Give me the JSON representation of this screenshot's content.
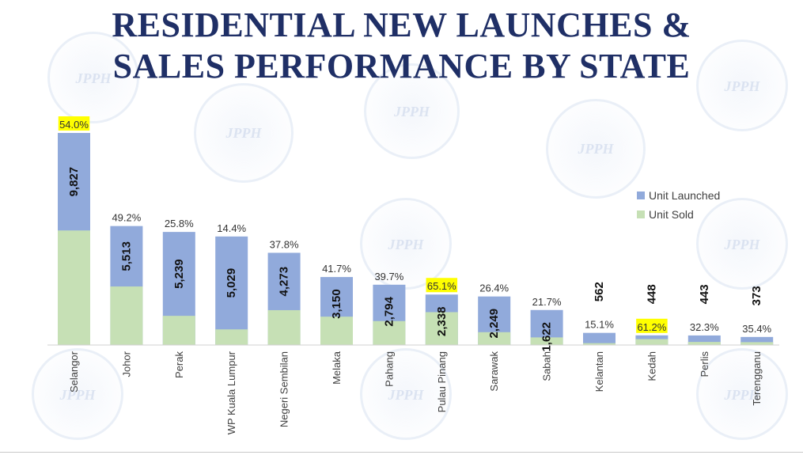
{
  "title_lines": [
    "RESIDENTIAL NEW LAUNCHES &",
    "SALES PERFORMANCE BY STATE"
  ],
  "watermark_icon": "jpph-globe-logo",
  "colors": {
    "launched": "#91aadb",
    "sold": "#c6e0b5",
    "highlight": "#ffff00",
    "title": "#1f2f66"
  },
  "chart_data": {
    "type": "bar",
    "stacked": "overlay",
    "title": "RESIDENTIAL NEW LAUNCHES & SALES PERFORMANCE BY STATE",
    "categories": [
      "Selangor",
      "Johor",
      "Perak",
      "WP Kuala Lumpur",
      "Negeri Sembilan",
      "Melaka",
      "Pahang",
      "Pulau Pinang",
      "Sarawak",
      "Sabah",
      "Kelantan",
      "Kedah",
      "Perlis",
      "Terengganu"
    ],
    "series": [
      {
        "name": "Unit Launched",
        "values": [
          9827,
          5513,
          5239,
          5029,
          4273,
          3150,
          2794,
          2338,
          2249,
          1622,
          562,
          448,
          443,
          373
        ]
      },
      {
        "name": "Unit Sold",
        "values": [
          5307,
          2712,
          1352,
          724,
          1615,
          1314,
          1109,
          1522,
          594,
          352,
          85,
          274,
          143,
          132
        ]
      }
    ],
    "value_labels": [
      "9,827",
      "5,513",
      "5,239",
      "5,029",
      "4,273",
      "3,150",
      "2,794",
      "2,338",
      "2,249",
      "1,622",
      "562",
      "448",
      "443",
      "373"
    ],
    "percent_labels": [
      "54.0%",
      "49.2%",
      "25.8%",
      "14.4%",
      "37.8%",
      "41.7%",
      "39.7%",
      "65.1%",
      "26.4%",
      "21.7%",
      "15.1%",
      "61.2%",
      "32.3%",
      "35.4%"
    ],
    "highlighted": [
      "Selangor",
      "Pulau Pinang",
      "Kedah"
    ],
    "legend": [
      "Unit Launched",
      "Unit Sold"
    ],
    "legend_position": "right",
    "ylim": [
      0,
      10000
    ],
    "grid": false
  }
}
